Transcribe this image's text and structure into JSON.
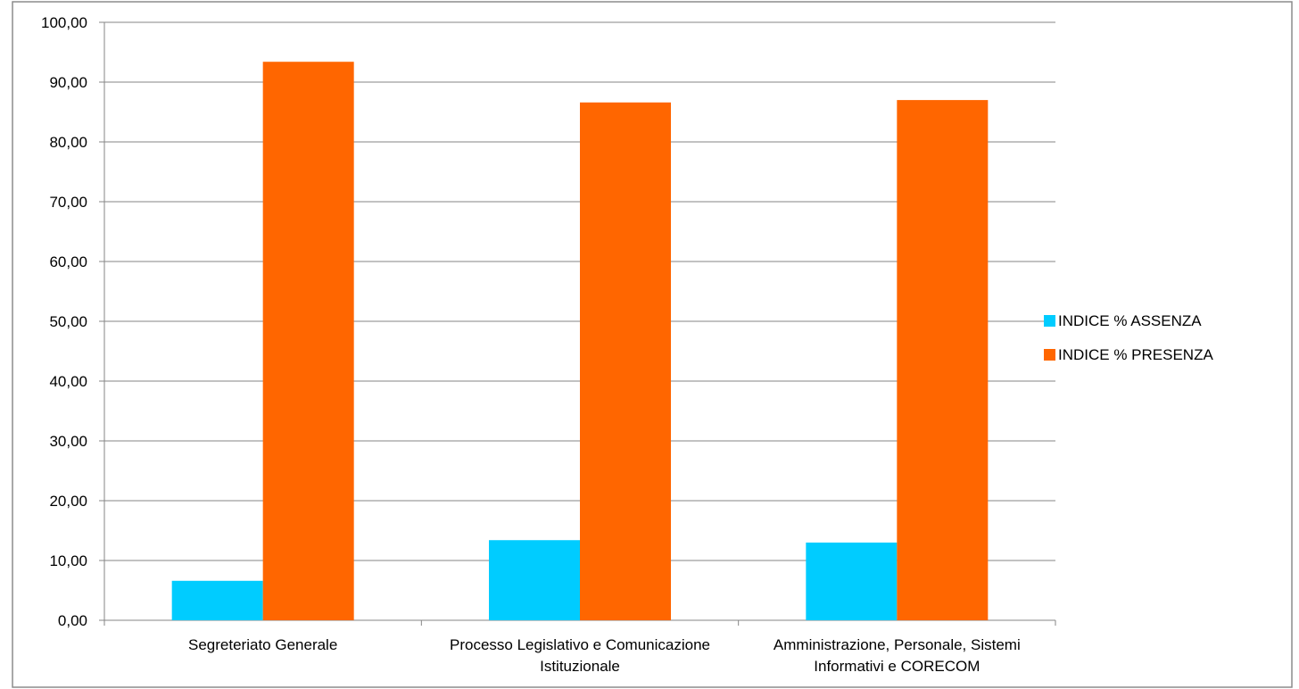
{
  "chart_data": {
    "type": "bar",
    "title": "",
    "xlabel": "",
    "ylabel": "",
    "categories": [
      [
        "Segreteriato Generale"
      ],
      [
        "Processo Legislativo e Comunicazione",
        "Istituzionale"
      ],
      [
        "Amministrazione, Personale, Sistemi",
        "Informativi e CORECOM"
      ]
    ],
    "series": [
      {
        "name": "INDICE % ASSENZA",
        "color": "#00CCFF",
        "values": [
          6.6,
          13.4,
          13.0
        ]
      },
      {
        "name": "INDICE % PRESENZA",
        "color": "#FF6600",
        "values": [
          93.4,
          86.6,
          87.0
        ]
      }
    ],
    "ylim": [
      0,
      100
    ],
    "yticks": [
      "0,00",
      "10,00",
      "20,00",
      "30,00",
      "40,00",
      "50,00",
      "60,00",
      "70,00",
      "80,00",
      "90,00",
      "100,00"
    ],
    "grid": true,
    "legend_position": "right"
  }
}
